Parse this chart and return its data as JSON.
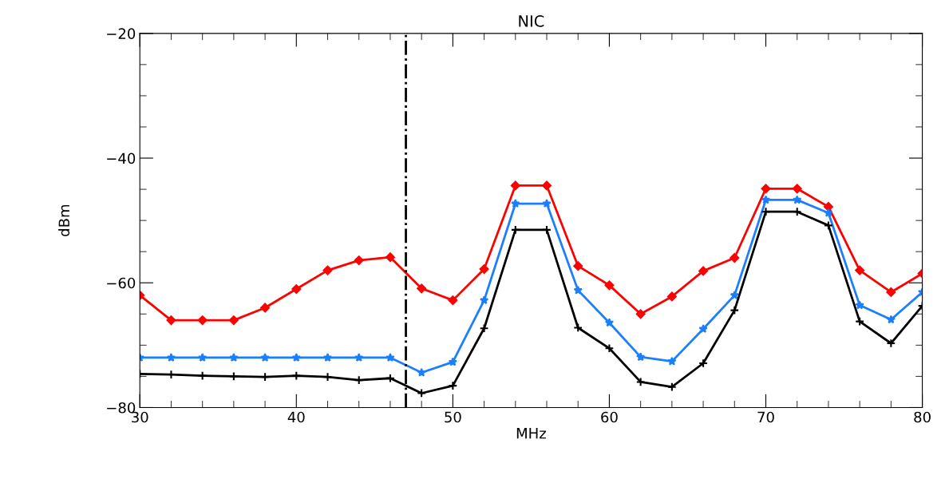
{
  "chart_data": {
    "type": "line",
    "title": "NIC",
    "xlabel": "MHz",
    "ylabel": "dBm",
    "x": [
      30,
      32,
      34,
      36,
      38,
      40,
      42,
      44,
      46,
      48,
      50,
      52,
      54,
      56,
      58,
      60,
      62,
      64,
      66,
      68,
      70,
      72,
      74,
      76,
      78,
      80
    ],
    "series": [
      {
        "color": "#ff0000",
        "marker": "diamond",
        "values": [
          -62,
          -66,
          -66,
          -66,
          -64,
          -61,
          -58,
          -56.4,
          -55.9,
          -60.9,
          -62.8,
          -57.8,
          -44.4,
          -44.4,
          -57.3,
          -60.4,
          -65,
          -62.2,
          -58.1,
          -56,
          -44.9,
          -44.9,
          -47.8,
          -58,
          -61.5,
          -58.5
        ]
      },
      {
        "color": "#1a7fff",
        "marker": "star",
        "values": [
          -72,
          -72,
          -72,
          -72,
          -72,
          -72,
          -72,
          -72,
          -72,
          -74.4,
          -72.7,
          -62.8,
          -47.3,
          -47.3,
          -61.2,
          -66.4,
          -71.9,
          -72.6,
          -67.4,
          -62,
          -46.7,
          -46.7,
          -48.8,
          -63.6,
          -65.9,
          -61.5
        ]
      },
      {
        "color": "#000000",
        "marker": "cross",
        "values": [
          -74.6,
          -74.7,
          -74.9,
          -75,
          -75.1,
          -74.9,
          -75.1,
          -75.6,
          -75.3,
          -77.7,
          -76.5,
          -67.3,
          -51.5,
          -51.5,
          -67.2,
          -70.5,
          -75.9,
          -76.7,
          -72.9,
          -64.4,
          -48.6,
          -48.6,
          -50.8,
          -66.2,
          -69.7,
          -63.7
        ]
      }
    ],
    "xlim": [
      30,
      80
    ],
    "xticks": [
      30,
      40,
      50,
      60,
      70,
      80
    ],
    "ylim": [
      -80,
      -20
    ],
    "yticks": [
      {
        "value": -80,
        "label": "−80"
      },
      {
        "value": -60,
        "label": "−60"
      },
      {
        "value": -40,
        "label": "−40"
      },
      {
        "value": -20,
        "label": "−20"
      }
    ],
    "ref_lines": [
      {
        "axis": "x",
        "value": 47,
        "color": "#000000",
        "line_style": "dashdot"
      }
    ],
    "grid": false,
    "line_style": "solid"
  }
}
